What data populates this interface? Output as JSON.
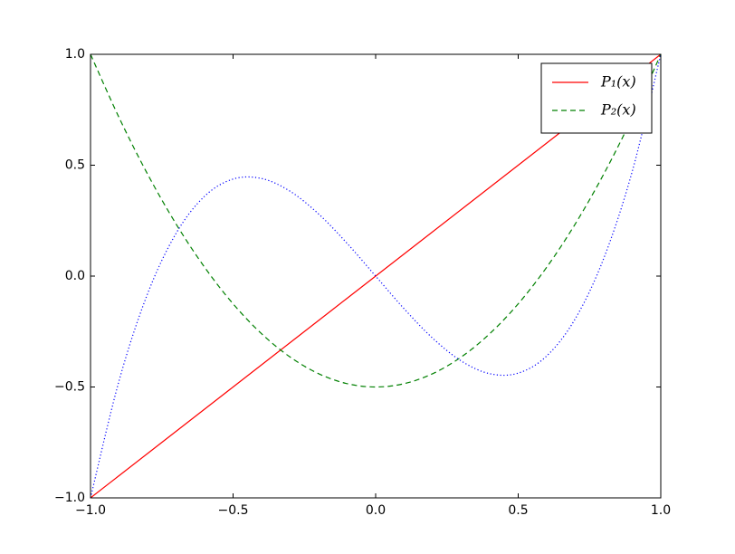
{
  "chart_data": {
    "type": "line",
    "x": [
      -1,
      -0.9,
      -0.8,
      -0.7,
      -0.6,
      -0.5,
      -0.4,
      -0.3,
      -0.2,
      -0.1,
      0,
      0.1,
      0.2,
      0.3,
      0.4,
      0.5,
      0.6,
      0.7,
      0.8,
      0.9,
      1
    ],
    "series": [
      {
        "name": "P₁(x)",
        "color": "#ff0000",
        "linestyle": "solid",
        "values": [
          -1,
          -0.9,
          -0.8,
          -0.7,
          -0.6,
          -0.5,
          -0.4,
          -0.3,
          -0.2,
          -0.1,
          0,
          0.1,
          0.2,
          0.3,
          0.4,
          0.5,
          0.6,
          0.7,
          0.8,
          0.9,
          1
        ]
      },
      {
        "name": "P₂(x)",
        "color": "#008000",
        "linestyle": "dashed",
        "values": [
          1,
          0.715,
          0.46,
          0.235,
          0.04,
          -0.125,
          -0.26,
          -0.365,
          -0.44,
          -0.485,
          -0.5,
          -0.485,
          -0.44,
          -0.365,
          -0.26,
          -0.125,
          0.04,
          0.235,
          0.46,
          0.715,
          1
        ]
      },
      {
        "color": "#0000ff",
        "linestyle": "dotted",
        "values": [
          -1,
          -0.4725,
          -0.08,
          0.1925,
          0.36,
          0.4375,
          0.44,
          0.3825,
          0.28,
          0.1475,
          0,
          -0.1475,
          -0.28,
          -0.3825,
          -0.44,
          -0.4375,
          -0.36,
          -0.1925,
          0.08,
          0.4725,
          1
        ]
      }
    ],
    "xlim": [
      -1,
      1
    ],
    "ylim": [
      -1,
      1
    ],
    "xticks": [
      {
        "value": -1,
        "label": "−1.0"
      },
      {
        "value": -0.5,
        "label": "−0.5"
      },
      {
        "value": 0,
        "label": "0.0"
      },
      0.5,
      {
        "value": 1,
        "label": "1.0"
      }
    ],
    "yticks": [
      {
        "value": -1,
        "label": "−1.0"
      },
      {
        "value": -0.5,
        "label": "−0.5"
      },
      {
        "value": 0,
        "label": "0.0"
      },
      0.5,
      {
        "value": 1,
        "label": "1.0"
      }
    ],
    "grid": false,
    "legend": "upper right"
  }
}
